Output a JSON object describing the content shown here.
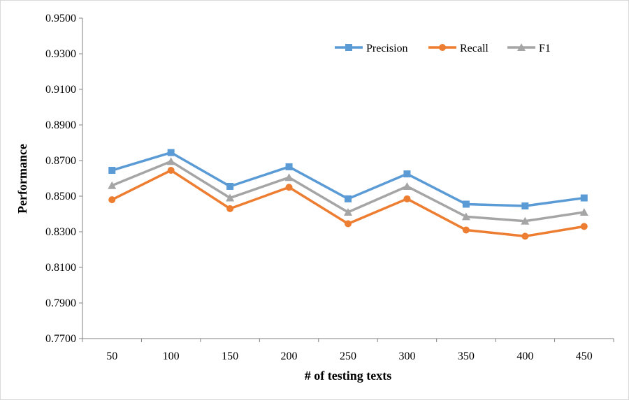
{
  "chart_data": {
    "type": "line",
    "title": "",
    "xlabel": "# of testing texts",
    "ylabel": "Performance",
    "categories": [
      "50",
      "100",
      "150",
      "200",
      "250",
      "300",
      "350",
      "400",
      "450"
    ],
    "ylim": [
      0.77,
      0.95
    ],
    "yticks": [
      "0.7700",
      "0.7900",
      "0.8100",
      "0.8300",
      "0.8500",
      "0.8700",
      "0.8900",
      "0.9100",
      "0.9300",
      "0.9500"
    ],
    "grid": false,
    "legend_position": "top-right",
    "series": [
      {
        "name": "Precision",
        "color": "#5b9bd5",
        "marker": "square",
        "values": [
          0.8645,
          0.8745,
          0.8555,
          0.8665,
          0.8485,
          0.8625,
          0.8455,
          0.8445,
          0.849
        ]
      },
      {
        "name": "Recall",
        "color": "#ed7d31",
        "marker": "circle",
        "values": [
          0.848,
          0.8645,
          0.843,
          0.855,
          0.8345,
          0.8485,
          0.831,
          0.8275,
          0.833
        ]
      },
      {
        "name": "F1",
        "color": "#a5a5a5",
        "marker": "triangle",
        "values": [
          0.856,
          0.8695,
          0.849,
          0.8605,
          0.841,
          0.8555,
          0.8385,
          0.836,
          0.841
        ]
      }
    ]
  }
}
